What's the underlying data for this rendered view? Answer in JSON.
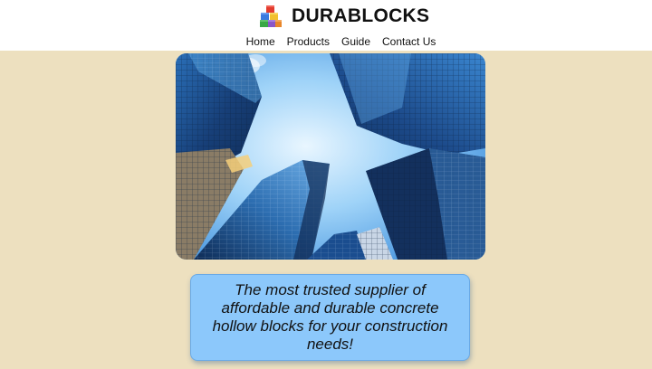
{
  "brand": {
    "name": "DURABLOCKS",
    "logo_icon": "stacked-blocks-icon"
  },
  "nav": {
    "items": [
      {
        "label": "Home"
      },
      {
        "label": "Products"
      },
      {
        "label": "Guide"
      },
      {
        "label": "Contact Us"
      }
    ]
  },
  "hero": {
    "image": "skyscrapers-looking-up"
  },
  "tagline": {
    "text": "The most trusted supplier of affordable and durable concrete hollow blocks for your construction needs!"
  },
  "colors": {
    "page_background": "#ede0bf",
    "header_background": "#ffffff",
    "tagline_background": "#8cc8fb"
  }
}
